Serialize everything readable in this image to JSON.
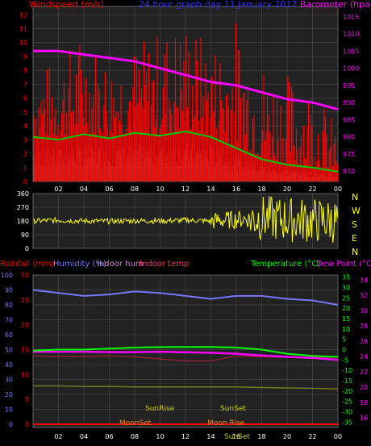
{
  "header": {
    "windspeed_label": "Windspeed (m/s)",
    "title": "24 hour graph day  11 January 2017",
    "barometer_label": "Barometer (hpa)"
  },
  "lower_header": {
    "rainfall_label": "Rainfall (mm)",
    "humidity_label": "Humidity (%)",
    "indoor_hum_label": "Indoor hum",
    "indoor_temp_label": "Indoor temp",
    "temperature_label": "Temperature (°C)",
    "dewpoint_label": "Dew Point (°C)"
  },
  "colors": {
    "windspeed": "#ff0000",
    "wind_avg": "#00cc00",
    "wind_gust_fill": "#d0f0d0",
    "barometer": "#ff00ff",
    "direction": "#ffff00",
    "humidity": "#7777ff",
    "temperature": "#00ff00",
    "dewpoint": "#ff00ff",
    "indoor_temp": "#882233",
    "indoor_hum": "#777722",
    "rainfall": "#ff0000",
    "grid": "#555555",
    "title": "#3333ff"
  },
  "chart_data": [
    {
      "id": "wind",
      "type": "line",
      "title": "24 hour graph day  11 January 2017",
      "ylabel": "Windspeed (m/s)",
      "y2label": "Barometer (hpa)",
      "x_ticks": [
        "02",
        "04",
        "06",
        "08",
        "10",
        "12",
        "14",
        "16",
        "18",
        "20",
        "22",
        "00"
      ],
      "y_ticks": [
        0,
        1,
        2,
        3,
        4,
        5,
        6,
        7,
        8,
        9,
        10,
        11,
        12
      ],
      "y2_ticks": [
        970,
        975,
        980,
        985,
        990,
        995,
        1000,
        1005,
        1010,
        1015
      ],
      "ylim": [
        0,
        12.6
      ],
      "y2lim": [
        967,
        1018
      ],
      "hours": [
        0,
        2,
        4,
        6,
        8,
        10,
        12,
        14,
        16,
        18,
        20,
        22,
        24
      ],
      "barometer": [
        1005,
        1005,
        1004,
        1003,
        1002,
        1000,
        998,
        996,
        995,
        993,
        991,
        990,
        988
      ],
      "wind_avg": [
        3.2,
        3.0,
        3.4,
        3.1,
        3.5,
        3.3,
        3.6,
        3.2,
        2.4,
        1.6,
        1.2,
        1.0,
        0.7
      ],
      "wind_max": [
        8,
        9,
        11,
        9,
        10,
        11,
        12,
        10,
        12,
        9,
        8,
        7,
        4
      ]
    },
    {
      "id": "direction",
      "type": "line",
      "y_ticks": [
        0,
        90,
        180,
        270,
        360
      ],
      "ylim": [
        0,
        360
      ],
      "compass_labels": [
        "N",
        "W",
        "S",
        "E",
        "N"
      ],
      "hours": [
        0,
        2,
        4,
        6,
        8,
        10,
        12,
        14,
        16,
        18,
        20,
        22,
        24
      ],
      "direction_mean": [
        180,
        185,
        180,
        178,
        182,
        180,
        185,
        180,
        190,
        200,
        190,
        185,
        180
      ]
    },
    {
      "id": "temperature",
      "type": "line",
      "x_ticks": [
        "02",
        "04",
        "06",
        "08",
        "10",
        "12",
        "14",
        "16",
        "18",
        "20",
        "22",
        "00"
      ],
      "humidity_ticks": [
        0,
        10,
        20,
        30,
        40,
        50,
        60,
        70,
        80,
        90,
        100
      ],
      "rainfall_ticks": [
        0,
        5,
        10,
        15,
        20,
        25,
        30
      ],
      "temp_ticks": [
        -35,
        -30,
        -25,
        -20,
        -15,
        -10,
        -5,
        0,
        5,
        10,
        15,
        20,
        25,
        30,
        35
      ],
      "dewpoint_ticks": [
        16,
        18,
        20,
        22,
        24,
        26,
        28,
        30,
        32,
        34
      ],
      "humidity_lim": [
        0,
        100
      ],
      "temp_lim": [
        -36,
        36
      ],
      "hours": [
        0,
        2,
        4,
        6,
        8,
        10,
        12,
        14,
        16,
        18,
        20,
        22,
        24
      ],
      "humidity": [
        90,
        88,
        86,
        87,
        89,
        88,
        86,
        84,
        86,
        86,
        84,
        83,
        80
      ],
      "temperature": [
        -0.5,
        0,
        0,
        0.5,
        1,
        1.2,
        1.3,
        1.3,
        1,
        0,
        -2,
        -3,
        -3.5
      ],
      "dewpoint": [
        -1,
        -1,
        -1,
        -1.2,
        -1.2,
        -1,
        -1.3,
        -1.5,
        -2,
        -2.8,
        -3.5,
        -4,
        -5
      ],
      "indoor_temp": [
        -3,
        -3.4,
        -3.3,
        -3,
        -3.5,
        -4.5,
        -5.5,
        -5.5,
        -3,
        -3.5,
        -3.5,
        -3.6,
        -3.8
      ],
      "indoor_hum": [
        -17.5,
        -17.5,
        -17.8,
        -17.8,
        -18,
        -18,
        -18,
        -18,
        -18,
        -18.3,
        -18.5,
        -18.7,
        -19
      ],
      "annotations": {
        "sunrise": "SunRise",
        "sunset": "SunSet",
        "moonset": "MoonSet",
        "moonrise": "Moon Rise",
        "sunset2": "SunSet"
      },
      "rainfall": [
        0,
        0,
        0,
        0,
        0,
        0,
        0,
        0,
        0,
        0,
        0,
        0,
        0
      ]
    }
  ]
}
